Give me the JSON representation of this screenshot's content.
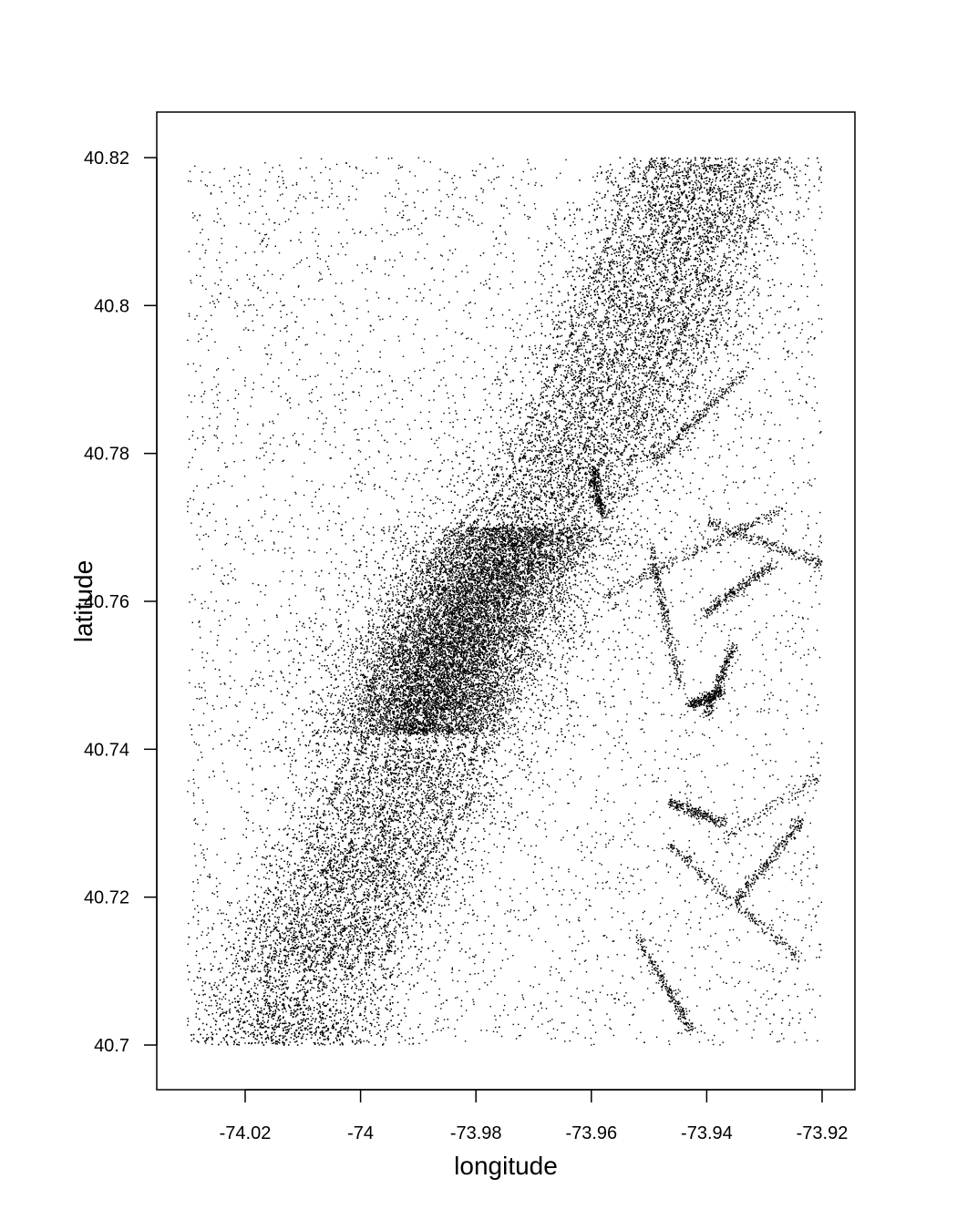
{
  "chart_data": {
    "type": "scatter",
    "title": "",
    "xlabel": "longitude",
    "ylabel": "latitude",
    "xlim": [
      -74.035,
      -73.915
    ],
    "ylim": [
      40.694,
      40.826
    ],
    "x_ticks": [
      -74.02,
      -74,
      -73.98,
      -73.96,
      -73.94,
      -73.92
    ],
    "x_tick_labels": [
      "-74.02",
      "-74",
      "-73.98",
      "-73.96",
      "-73.94",
      "-73.92"
    ],
    "y_ticks": [
      40.7,
      40.72,
      40.74,
      40.76,
      40.78,
      40.8,
      40.82
    ],
    "y_tick_labels": [
      "40.7",
      "40.72",
      "40.74",
      "40.76",
      "40.78",
      "40.8",
      "40.82"
    ],
    "grid": false,
    "legend": "none",
    "point_color": "#000000",
    "x_range_of_points": [
      -74.03,
      -73.92
    ],
    "y_range_of_points": [
      40.7,
      40.82
    ],
    "series": [
      {
        "name": "",
        "points_sample": [
          [
            -74.011,
            40.706
          ],
          [
            -74.013,
            40.71
          ],
          [
            -74.009,
            40.703
          ],
          [
            -74.005,
            40.712
          ],
          [
            -73.999,
            40.722
          ],
          [
            -73.995,
            40.73
          ],
          [
            -73.99,
            40.74
          ],
          [
            -73.986,
            40.75
          ],
          [
            -73.984,
            40.755
          ],
          [
            -73.982,
            40.76
          ],
          [
            -73.978,
            40.758
          ],
          [
            -73.975,
            40.762
          ],
          [
            -73.97,
            40.765
          ],
          [
            -73.965,
            40.772
          ],
          [
            -73.958,
            40.775
          ],
          [
            -73.952,
            40.778
          ],
          [
            -73.975,
            40.78
          ],
          [
            -73.97,
            40.79
          ],
          [
            -73.965,
            40.8
          ],
          [
            -73.96,
            40.81
          ],
          [
            -73.955,
            40.82
          ],
          [
            -73.94,
            40.81
          ],
          [
            -73.945,
            40.8
          ],
          [
            -73.95,
            40.79
          ],
          [
            -73.99,
            40.77
          ],
          [
            -73.995,
            40.76
          ],
          [
            -74.0,
            40.75
          ],
          [
            -73.98,
            40.73
          ],
          [
            -73.985,
            40.72
          ],
          [
            -73.99,
            40.71
          ],
          [
            -73.96,
            40.7
          ],
          [
            -73.95,
            40.71
          ],
          [
            -73.94,
            40.72
          ],
          [
            -73.955,
            40.73
          ],
          [
            -73.945,
            40.74
          ],
          [
            -73.93,
            40.75
          ],
          [
            -73.925,
            40.76
          ],
          [
            -73.935,
            40.77
          ],
          [
            -74.02,
            40.74
          ],
          [
            -74.025,
            40.76
          ],
          [
            -74.02,
            40.8
          ],
          [
            -74.01,
            40.79
          ],
          [
            -74.015,
            40.78
          ],
          [
            -74.0,
            40.81
          ],
          [
            -73.985,
            40.815
          ],
          [
            -73.93,
            40.79
          ],
          [
            -73.922,
            40.73
          ],
          [
            -73.97,
            40.745
          ]
        ]
      }
    ]
  }
}
